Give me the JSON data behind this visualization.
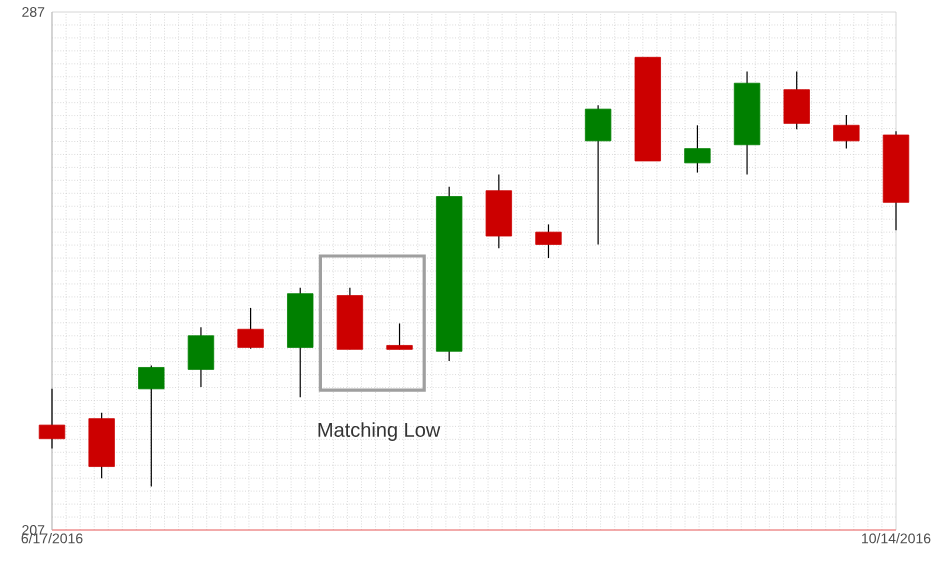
{
  "chart_data": {
    "type": "candlestick",
    "x": [
      "2016-06-17",
      "2016-06-24",
      "2016-07-01",
      "2016-07-08",
      "2016-07-15",
      "2016-07-22",
      "2016-07-29",
      "2016-08-05",
      "2016-08-12",
      "2016-08-19",
      "2016-08-26",
      "2016-09-02",
      "2016-09-09",
      "2016-09-16",
      "2016-09-23",
      "2016-09-30",
      "2016-10-07",
      "2016-10-14"
    ],
    "ohlc": [
      [
        223.2,
        228.8,
        219.6,
        221.1
      ],
      [
        224.2,
        225.1,
        215.0,
        216.8
      ],
      [
        228.8,
        232.4,
        213.7,
        232.1
      ],
      [
        231.8,
        238.3,
        229.1,
        237.0
      ],
      [
        238.0,
        241.3,
        235.0,
        235.2
      ],
      [
        235.2,
        244.4,
        227.5,
        243.5
      ],
      [
        243.2,
        244.4,
        234.9,
        234.9
      ],
      [
        235.5,
        238.9,
        234.9,
        234.9
      ],
      [
        234.6,
        260.0,
        233.1,
        258.5
      ],
      [
        259.4,
        261.9,
        250.5,
        252.4
      ],
      [
        253.0,
        254.2,
        249.0,
        251.1
      ],
      [
        267.1,
        272.6,
        251.1,
        272.0
      ],
      [
        280.0,
        280.0,
        264.0,
        264.0
      ],
      [
        263.7,
        269.5,
        262.2,
        265.9
      ],
      [
        266.5,
        277.8,
        261.9,
        276.0
      ],
      [
        275.0,
        277.8,
        268.9,
        269.8
      ],
      [
        269.5,
        271.1,
        265.9,
        267.1
      ],
      [
        268.0,
        268.6,
        253.3,
        257.6
      ]
    ],
    "colors": [
      "#cc0000",
      "#cc0000",
      "#008000",
      "#008000",
      "#cc0000",
      "#008000",
      "#cc0000",
      "#cc0000",
      "#008000",
      "#cc0000",
      "#cc0000",
      "#008000",
      "#cc0000",
      "#008000",
      "#008000",
      "#cc0000",
      "#cc0000",
      "#cc0000"
    ],
    "xlim": [
      "2016-06-17",
      "2016-10-14"
    ],
    "xticks": [
      {
        "value": "2016-06-17",
        "label": "6/17/2016"
      },
      {
        "value": "2016-10-14",
        "label": "10/14/2016"
      }
    ],
    "ylim": [
      207,
      287
    ],
    "yticks": [
      207,
      287
    ],
    "grid": true,
    "annotations": [
      "Matching Low"
    ]
  }
}
